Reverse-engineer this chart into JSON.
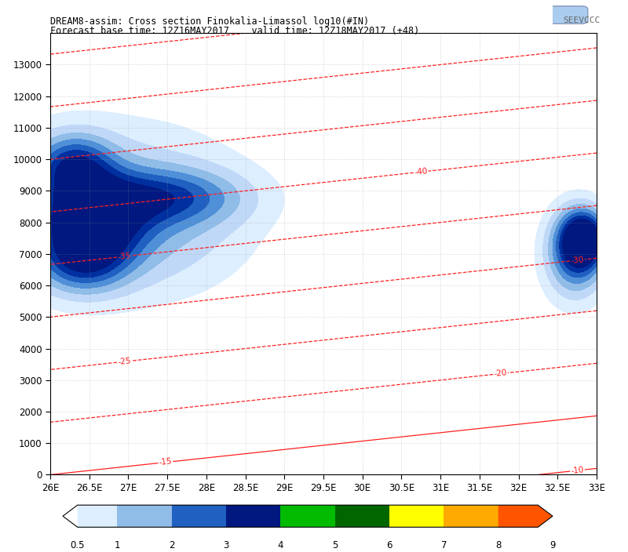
{
  "title_line1": "DREAM8-assim: Cross section Finokalia-Limassol log10(#IN)",
  "title_line2": "Forecast base time: 12Z16MAY2017    valid time: 12Z18MAY2017 (+48)",
  "xlabel_ticks": [
    "26E",
    "26.5E",
    "27E",
    "27.5E",
    "28E",
    "28.5E",
    "29E",
    "29.5E",
    "30E",
    "30.5E",
    "31E",
    "31.5E",
    "32E",
    "32.5E",
    "33E"
  ],
  "xlabel_vals": [
    26.0,
    26.5,
    27.0,
    27.5,
    28.0,
    28.5,
    29.0,
    29.5,
    30.0,
    30.5,
    31.0,
    31.5,
    32.0,
    32.5,
    33.0
  ],
  "ylim": [
    0,
    14000
  ],
  "xlim": [
    26.0,
    33.0
  ],
  "yticks": [
    0,
    1000,
    2000,
    3000,
    4000,
    5000,
    6000,
    7000,
    8000,
    9000,
    10000,
    11000,
    12000,
    13000
  ],
  "colorbar_levels": [
    0.5,
    1,
    2,
    3,
    4,
    5,
    6,
    7,
    8,
    9
  ],
  "colorbar_colors": [
    "#ddeeff",
    "#b8d4f0",
    "#7aaee0",
    "#3366cc",
    "#00bb00",
    "#006600",
    "#ffff00",
    "#ffaa00",
    "#ff5500",
    "#cc0000"
  ],
  "bg_color": "#ffffff",
  "grid_color": "#999999",
  "contour_color": "#ff2020",
  "title_color": "#000000"
}
